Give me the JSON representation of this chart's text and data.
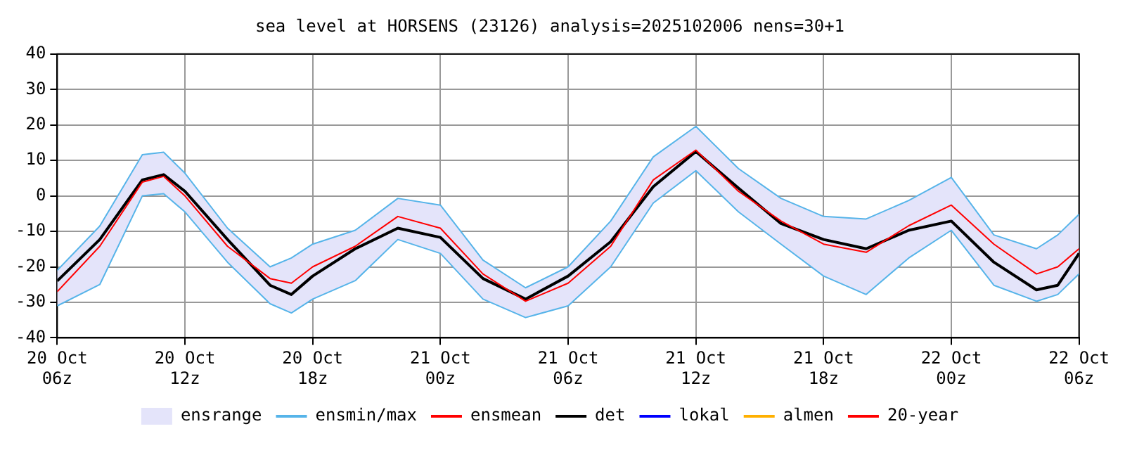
{
  "chart_data": {
    "type": "line",
    "title": "sea level at HORSENS (23126) analysis=2025102006 nens=30+1",
    "x": [
      "2025-10-20T06:00",
      "2025-10-20T08:00",
      "2025-10-20T10:00",
      "2025-10-20T11:00",
      "2025-10-20T12:00",
      "2025-10-20T14:00",
      "2025-10-20T16:00",
      "2025-10-20T17:00",
      "2025-10-20T18:00",
      "2025-10-20T20:00",
      "2025-10-20T22:00",
      "2025-10-21T00:00",
      "2025-10-21T02:00",
      "2025-10-21T04:00",
      "2025-10-21T06:00",
      "2025-10-21T08:00",
      "2025-10-21T10:00",
      "2025-10-21T12:00",
      "2025-10-21T14:00",
      "2025-10-21T16:00",
      "2025-10-21T18:00",
      "2025-10-21T20:00",
      "2025-10-21T22:00",
      "2025-10-22T00:00",
      "2025-10-22T02:00",
      "2025-10-22T04:00",
      "2025-10-22T05:00",
      "2025-10-22T06:00"
    ],
    "xlim": [
      "2025-10-20T06:00",
      "2025-10-22T06:00"
    ],
    "xticks": [
      {
        "value": "2025-10-20T06:00",
        "label": "20 Oct\n06z"
      },
      {
        "value": "2025-10-20T12:00",
        "label": "20 Oct\n12z"
      },
      {
        "value": "2025-10-20T18:00",
        "label": "20 Oct\n18z"
      },
      {
        "value": "2025-10-21T00:00",
        "label": "21 Oct\n00z"
      },
      {
        "value": "2025-10-21T06:00",
        "label": "21 Oct\n06z"
      },
      {
        "value": "2025-10-21T12:00",
        "label": "21 Oct\n12z"
      },
      {
        "value": "2025-10-21T18:00",
        "label": "21 Oct\n18z"
      },
      {
        "value": "2025-10-22T00:00",
        "label": "22 Oct\n00z"
      },
      {
        "value": "2025-10-22T06:00",
        "label": "22 Oct\n06z"
      }
    ],
    "ylim": [
      -40,
      40
    ],
    "yticks": [
      -40,
      -30,
      -20,
      -10,
      0,
      10,
      20,
      30,
      40
    ],
    "grid": true,
    "legend": "bottom",
    "line_style": "solid",
    "marker": "none",
    "series": [
      {
        "name": "ensrange",
        "color": "#e4e4fa",
        "values": [
          null,
          null,
          null,
          null,
          null,
          null,
          null,
          null,
          null,
          null,
          null,
          null,
          null,
          null,
          null,
          null,
          null,
          null,
          null,
          null,
          null,
          null,
          null,
          null,
          null,
          null,
          null,
          null
        ],
        "upper": [
          -21,
          -8.5,
          11.6,
          12.3,
          6.4,
          -9.1,
          -20,
          -17.5,
          -13.6,
          -9.7,
          -0.7,
          -2.6,
          -18.1,
          -25.9,
          -20,
          -7.1,
          11,
          19.6,
          7.7,
          -0.7,
          -5.8,
          -6.5,
          -1.3,
          5.2,
          -11,
          -14.9,
          -11,
          -5.2
        ],
        "lower": [
          -31,
          -25,
          0,
          0.6,
          -4.5,
          -18.7,
          -30.4,
          -33,
          -29.1,
          -23.9,
          -12.3,
          -16.2,
          -29.1,
          -34.3,
          -31,
          -20,
          -2,
          7.1,
          -4.5,
          -13.6,
          -22.6,
          -27.8,
          -17.5,
          -9.7,
          -25.2,
          -29.7,
          -27.8,
          -22
        ]
      },
      {
        "name": "ensmin/max",
        "color": "#56b4e9",
        "values": [
          -21,
          -8.5,
          11.6,
          12.3,
          6.4,
          -9.1,
          -20,
          -17.5,
          -13.6,
          -9.7,
          -0.7,
          -2.6,
          -18.1,
          -25.9,
          -20,
          -7.1,
          11,
          19.6,
          7.7,
          -0.7,
          -5.8,
          -6.5,
          -1.3,
          5.2,
          -11,
          -14.9,
          -11,
          -5.2
        ]
      },
      {
        "color": "#56b4e9",
        "values": [
          -31,
          -25,
          0,
          0.6,
          -4.5,
          -18.7,
          -30.4,
          -33,
          -29.1,
          -23.9,
          -12.3,
          -16.2,
          -29.1,
          -34.3,
          -31,
          -20,
          -2,
          7.1,
          -4.5,
          -13.6,
          -22.6,
          -27.8,
          -17.5,
          -9.7,
          -25.2,
          -29.7,
          -27.8,
          -22
        ]
      },
      {
        "name": "ensmean",
        "color": "#ff0000",
        "values": [
          -27,
          -14.2,
          3.9,
          5.5,
          0,
          -14.2,
          -23.3,
          -24.6,
          -20,
          -14.2,
          -5.8,
          -9.1,
          -22,
          -29.7,
          -24.6,
          -14.2,
          4.5,
          12.9,
          1.3,
          -7.1,
          -13.6,
          -15.9,
          -8.4,
          -2.6,
          -13.6,
          -22,
          -20,
          -14.9
        ]
      },
      {
        "name": "det",
        "color": "#000000",
        "values": [
          -24,
          -12.3,
          4.5,
          6,
          1.3,
          -12.3,
          -25.2,
          -27.8,
          -22.6,
          -14.9,
          -9.1,
          -11.7,
          -23.3,
          -29.1,
          -22.6,
          -12.9,
          2.6,
          12.5,
          2.2,
          -7.8,
          -12.3,
          -14.9,
          -9.7,
          -7.1,
          -18.7,
          -26.5,
          -25.2,
          -16.2
        ]
      },
      {
        "name": "lokal",
        "color": "#0000ff",
        "values": [
          null,
          null,
          null,
          null,
          null,
          null,
          null,
          null,
          null,
          null,
          null,
          null,
          null,
          null,
          null,
          null,
          null,
          null,
          null,
          null,
          null,
          null,
          null,
          null,
          null,
          null,
          null,
          null
        ]
      },
      {
        "name": "almen",
        "color": "#ffb000",
        "values": [
          null,
          null,
          null,
          null,
          null,
          null,
          null,
          null,
          null,
          null,
          null,
          null,
          null,
          null,
          null,
          null,
          null,
          null,
          null,
          null,
          null,
          null,
          null,
          null,
          null,
          null,
          null,
          null
        ]
      },
      {
        "name": "20-year",
        "color": "#ff0000",
        "values": [
          null,
          null,
          null,
          null,
          null,
          null,
          null,
          null,
          null,
          null,
          null,
          null,
          null,
          null,
          null,
          null,
          null,
          null,
          null,
          null,
          null,
          null,
          null,
          null,
          null,
          null,
          null,
          null
        ]
      }
    ]
  }
}
